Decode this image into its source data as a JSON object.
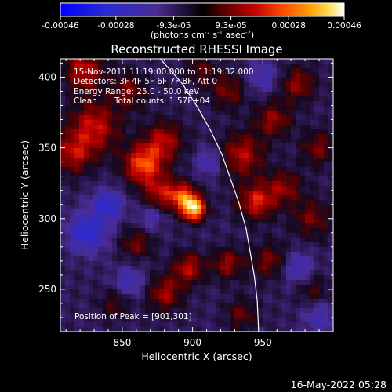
{
  "colorbar": {
    "ticks": [
      "-0.00046",
      "-0.00028",
      "-9.3e-05",
      "9.3e-05",
      "0.00028",
      "0.00046"
    ],
    "unit_main": "(photons cm",
    "unit_exp1": "-2",
    "unit_s": " s",
    "unit_exp2": "-1",
    "unit_asec": " asec",
    "unit_exp3": "-2",
    "unit_close": ")"
  },
  "annotations": {
    "time_range": "15-Nov-2011 11:19:00.000 to 11:19:32.000",
    "detectors": "Detectors: 3F 4F 5F 6F 7F 8F, Att 0",
    "energy": "Energy Range: 25.0 - 50.0 keV",
    "clean": "Clean",
    "total_counts": "Total counts: 1.57E+04",
    "peak": "Position of Peak = [901,301]"
  },
  "footer": {
    "date": "16-May-2022 05:28"
  },
  "chart_data": {
    "type": "heatmap",
    "title": "Reconstructed RHESSI Image",
    "xlabel": "Heliocentric X (arcsec)",
    "ylabel": "Heliocentric Y (arcsec)",
    "xlim": [
      806,
      1000
    ],
    "ylim": [
      220,
      413
    ],
    "xticks": [
      850,
      900,
      950
    ],
    "yticks": [
      250,
      300,
      350,
      400
    ],
    "clim": [
      -0.00046,
      0.00046
    ],
    "colorbar_tick_values": [
      -0.00046,
      -0.00028,
      -9.3e-05,
      9.3e-05,
      0.00028,
      0.00046
    ],
    "peak": [
      901,
      301
    ],
    "limb_points": [
      [
        877,
        413
      ],
      [
        893,
        395
      ],
      [
        904,
        378
      ],
      [
        913,
        362
      ],
      [
        921,
        345
      ],
      [
        927,
        328
      ],
      [
        933,
        311
      ],
      [
        938,
        293
      ],
      [
        941,
        276
      ],
      [
        944,
        259
      ],
      [
        946,
        242
      ],
      [
        947,
        220
      ]
    ],
    "blobs": [
      {
        "x": 901,
        "y": 307,
        "sigma": 6,
        "amp": 0.00046
      },
      {
        "x": 893,
        "y": 316,
        "sigma": 7,
        "amp": 0.0003
      },
      {
        "x": 865,
        "y": 338,
        "sigma": 10,
        "amp": 0.00032
      },
      {
        "x": 877,
        "y": 318,
        "sigma": 8,
        "amp": 0.0002
      },
      {
        "x": 880,
        "y": 355,
        "sigma": 10,
        "amp": 0.00021
      },
      {
        "x": 830,
        "y": 365,
        "sigma": 13,
        "amp": 0.00024
      },
      {
        "x": 815,
        "y": 345,
        "sigma": 10,
        "amp": 0.0002
      },
      {
        "x": 823,
        "y": 405,
        "sigma": 10,
        "amp": 0.00024
      },
      {
        "x": 855,
        "y": 390,
        "sigma": 9,
        "amp": 0.00016
      },
      {
        "x": 935,
        "y": 345,
        "sigma": 11,
        "amp": 0.00022
      },
      {
        "x": 945,
        "y": 312,
        "sigma": 9,
        "amp": 0.00026
      },
      {
        "x": 965,
        "y": 322,
        "sigma": 9,
        "amp": 0.00018
      },
      {
        "x": 957,
        "y": 370,
        "sigma": 9,
        "amp": 0.00019
      },
      {
        "x": 985,
        "y": 300,
        "sigma": 10,
        "amp": 0.00016
      },
      {
        "x": 975,
        "y": 395,
        "sigma": 9,
        "amp": 0.00019
      },
      {
        "x": 990,
        "y": 350,
        "sigma": 9,
        "amp": 0.00016
      },
      {
        "x": 955,
        "y": 270,
        "sigma": 9,
        "amp": 0.00017
      },
      {
        "x": 925,
        "y": 268,
        "sigma": 8,
        "amp": 0.00019
      },
      {
        "x": 897,
        "y": 265,
        "sigma": 8,
        "amp": 0.00022
      },
      {
        "x": 880,
        "y": 247,
        "sigma": 9,
        "amp": 0.0002
      },
      {
        "x": 860,
        "y": 282,
        "sigma": 8,
        "amp": 0.00016
      },
      {
        "x": 925,
        "y": 390,
        "sigma": 9,
        "amp": 0.00016
      },
      {
        "x": 905,
        "y": 405,
        "sigma": 8,
        "amp": 0.00013
      },
      {
        "x": 845,
        "y": 240,
        "sigma": 8,
        "amp": 0.00012
      },
      {
        "x": 935,
        "y": 232,
        "sigma": 8,
        "amp": 0.00014
      },
      {
        "x": 985,
        "y": 250,
        "sigma": 8,
        "amp": 0.00012
      },
      {
        "x": 840,
        "y": 310,
        "sigma": 8,
        "amp": -0.00022
      },
      {
        "x": 825,
        "y": 290,
        "sigma": 10,
        "amp": -0.00024
      },
      {
        "x": 870,
        "y": 300,
        "sigma": 6,
        "amp": -0.00014
      },
      {
        "x": 975,
        "y": 265,
        "sigma": 8,
        "amp": -0.00018
      },
      {
        "x": 950,
        "y": 400,
        "sigma": 8,
        "amp": -0.00015
      },
      {
        "x": 912,
        "y": 340,
        "sigma": 7,
        "amp": -0.00016
      },
      {
        "x": 855,
        "y": 255,
        "sigma": 8,
        "amp": -0.00016
      },
      {
        "x": 990,
        "y": 230,
        "sigma": 8,
        "amp": -0.00014
      }
    ]
  }
}
